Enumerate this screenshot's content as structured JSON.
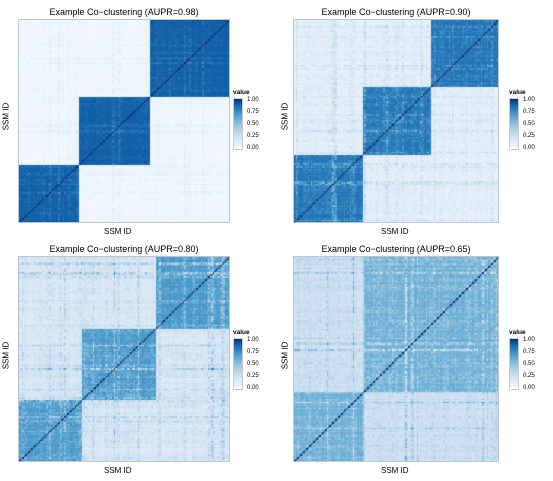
{
  "colors": {
    "low": "#f7fbff",
    "high": "#08306b"
  },
  "chart_data": [
    {
      "type": "heatmap",
      "title": "Example Co−clustering (AUPR=0.98)",
      "xlabel": "SSM ID",
      "ylabel": "SSM ID",
      "legend": {
        "title": "value",
        "ticks": [
          "1.00",
          "0.75",
          "0.50",
          "0.25",
          "0.00"
        ],
        "position": "right"
      },
      "clusters": [
        0.28,
        0.34,
        0.38
      ],
      "block_values": {
        "diagonal": 0.9,
        "off_diagonal": 0.03
      },
      "noise": 0.08
    },
    {
      "type": "heatmap",
      "title": "Example Co−clustering (AUPR=0.90)",
      "xlabel": "SSM ID",
      "ylabel": "SSM ID",
      "legend": {
        "title": "value",
        "ticks": [
          "1.00",
          "0.75",
          "0.50",
          "0.25",
          "0.00"
        ],
        "position": "right"
      },
      "clusters": [
        0.33,
        0.34,
        0.33
      ],
      "block_values": {
        "diagonal": 0.85,
        "off_diagonal": 0.08
      },
      "noise": 0.22
    },
    {
      "type": "heatmap",
      "title": "Example Co−clustering (AUPR=0.80)",
      "xlabel": "SSM ID",
      "ylabel": "SSM ID",
      "legend": {
        "title": "value",
        "ticks": [
          "1.00",
          "0.75",
          "0.50",
          "0.25",
          "0.00"
        ],
        "position": "right"
      },
      "clusters": [
        0.3,
        0.35,
        0.35
      ],
      "block_values": {
        "diagonal": 0.72,
        "off_diagonal": 0.14
      },
      "noise": 0.3
    },
    {
      "type": "heatmap",
      "title": "Example Co−clustering (AUPR=0.65)",
      "xlabel": "SSM ID",
      "ylabel": "SSM ID",
      "legend": {
        "title": "value",
        "ticks": [
          "1.00",
          "0.75",
          "0.50",
          "0.25",
          "0.00"
        ],
        "position": "right"
      },
      "clusters": [
        0.34,
        0.66
      ],
      "block_values": {
        "diagonal": 0.62,
        "off_diagonal": 0.2
      },
      "noise": 0.32
    }
  ]
}
